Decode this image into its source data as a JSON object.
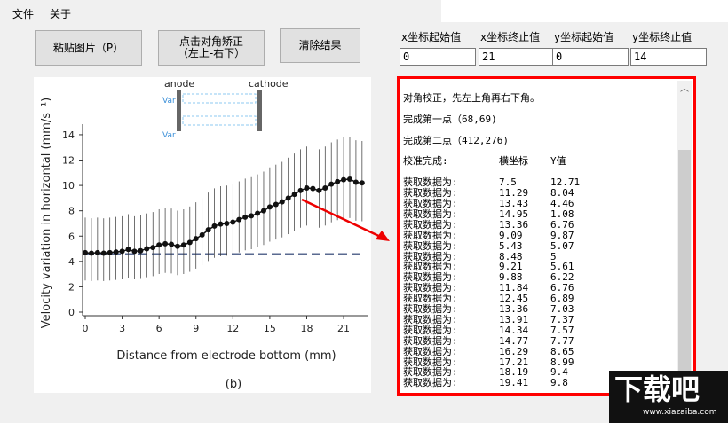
{
  "menu": {
    "items": [
      "文件",
      "关于"
    ]
  },
  "buttons": {
    "paste": "粘贴图片（P）",
    "correct_line1": "点击对角矫正",
    "correct_line2": "（左上-右下）",
    "clear": "清除结果"
  },
  "fields": [
    {
      "label": "x坐标起始值",
      "value": "0"
    },
    {
      "label": "x坐标终止值",
      "value": "21"
    },
    {
      "label": "y坐标起始值",
      "value": "0"
    },
    {
      "label": "y坐标终止值",
      "value": "14"
    }
  ],
  "output": {
    "header": [
      "对角校正，先左上角再右下角。",
      "完成第一点（68,69)",
      "完成第二点（412,276)"
    ],
    "columns": {
      "prefix": "校准完成:",
      "x": "横坐标",
      "y": "Y值"
    },
    "row_prefix": "获取数据为:",
    "rows": [
      [
        "7.5",
        "12.71"
      ],
      [
        "11.29",
        "8.04"
      ],
      [
        "13.43",
        "4.46"
      ],
      [
        "14.95",
        "1.08"
      ],
      [
        "13.36",
        "6.76"
      ],
      [
        "9.09",
        "9.87"
      ],
      [
        "5.43",
        "5.07"
      ],
      [
        "8.48",
        "5"
      ],
      [
        "9.21",
        "5.61"
      ],
      [
        "9.88",
        "6.22"
      ],
      [
        "11.84",
        "6.76"
      ],
      [
        "12.45",
        "6.89"
      ],
      [
        "13.36",
        "7.03"
      ],
      [
        "13.91",
        "7.37"
      ],
      [
        "14.34",
        "7.57"
      ],
      [
        "14.77",
        "7.77"
      ],
      [
        "16.29",
        "8.65"
      ],
      [
        "17.21",
        "8.99"
      ],
      [
        "18.19",
        "9.4"
      ],
      [
        "19.41",
        "9.8"
      ]
    ]
  },
  "chart_data": {
    "type": "scatter",
    "xlabel": "Distance from electrode bottom (mm)",
    "ylabel": "Velocity variation in horizontal (mm/s⁻¹)",
    "panel_label": "(b)",
    "xticks": [
      0,
      3,
      6,
      9,
      12,
      15,
      18,
      21
    ],
    "yticks": [
      0,
      2,
      4,
      6,
      8,
      10,
      12,
      14
    ],
    "xlim": [
      0,
      22.5
    ],
    "ylim": [
      0,
      14
    ],
    "x": [
      0,
      0.5,
      1,
      1.5,
      2,
      2.5,
      3,
      3.5,
      4,
      4.5,
      5,
      5.5,
      6,
      6.5,
      7,
      7.5,
      8,
      8.5,
      9,
      9.5,
      10,
      10.5,
      11,
      11.5,
      12,
      12.5,
      13,
      13.5,
      14,
      14.5,
      15,
      15.5,
      16,
      16.5,
      17,
      17.5,
      18,
      18.5,
      19,
      19.5,
      20,
      20.5,
      21,
      21.5,
      22,
      22.5
    ],
    "y": [
      4.7,
      4.65,
      4.7,
      4.65,
      4.7,
      4.75,
      4.8,
      4.95,
      4.8,
      4.85,
      5.0,
      5.1,
      5.3,
      5.4,
      5.35,
      5.2,
      5.3,
      5.5,
      5.8,
      6.1,
      6.5,
      6.8,
      6.95,
      7.0,
      7.1,
      7.3,
      7.5,
      7.6,
      7.8,
      8.0,
      8.3,
      8.5,
      8.7,
      9.0,
      9.3,
      9.6,
      9.8,
      9.75,
      9.6,
      9.8,
      10.1,
      10.3,
      10.45,
      10.5,
      10.25,
      10.2
    ],
    "error": 3.2,
    "baseline": 4.6,
    "inset": {
      "anode": "anode",
      "cathode": "cathode",
      "row_label": "Var"
    }
  },
  "watermark": {
    "logo": "下载吧",
    "url": "www.xiazaiba.com"
  }
}
